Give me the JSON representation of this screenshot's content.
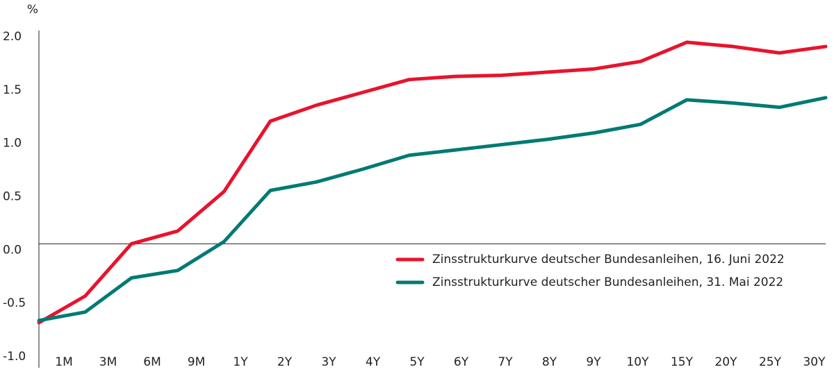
{
  "chart_data": {
    "type": "line",
    "y_label": "%",
    "categories": [
      "1M",
      "3M",
      "6M",
      "9M",
      "1Y",
      "2Y",
      "3Y",
      "4Y",
      "5Y",
      "6Y",
      "7Y",
      "8Y",
      "9Y",
      "10Y",
      "15Y",
      "20Y",
      "25Y",
      "30Y"
    ],
    "series": [
      {
        "name": "Zinsstrukturkurve deutscher Bundesanleihen, 16. Juni 2022",
        "color": "#e8132d",
        "values": [
          -0.74,
          -0.49,
          0,
          0.12,
          0.49,
          1.15,
          1.3,
          1.42,
          1.54,
          1.57,
          1.58,
          1.61,
          1.64,
          1.71,
          1.89,
          1.85,
          1.79,
          1.85
        ]
      },
      {
        "name": "Zinsstrukturkurve deutscher Bundesanleihen, 31. Mai 2022",
        "color": "#007a73",
        "values": [
          -0.72,
          -0.64,
          -0.32,
          -0.25,
          0.02,
          0.5,
          0.58,
          0.7,
          0.83,
          0.88,
          0.93,
          0.98,
          1.04,
          1.12,
          1.35,
          1.32,
          1.28,
          1.37
        ]
      }
    ],
    "ylim": [
      -1,
      2
    ],
    "yticks": [
      {
        "value": 2,
        "label": "2.0"
      },
      {
        "value": 1.5,
        "label": "1.5"
      },
      {
        "value": 1,
        "label": "1.0"
      },
      {
        "value": 0.5,
        "label": "0.5"
      },
      {
        "value": 0,
        "label": "0.0"
      },
      {
        "value": -0.5,
        "label": "-0.5"
      },
      {
        "value": -1,
        "label": "-1.0"
      }
    ],
    "grid": false,
    "legend": "right"
  }
}
